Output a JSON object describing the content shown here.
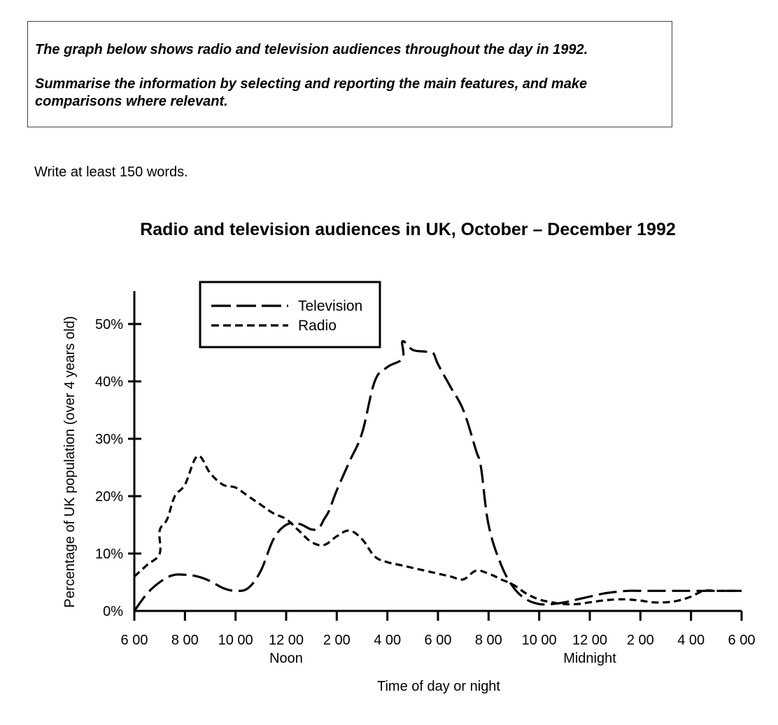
{
  "task": {
    "line1": "The graph below shows radio and television audiences throughout the day in 1992.",
    "line2": "Summarise the information by selecting and reporting the main features, and make",
    "line3": "comparisons where relevant."
  },
  "instruction": "Write at least 150 words.",
  "chart_data": {
    "type": "line",
    "title": "Radio and television audiences in UK, October – December 1992",
    "xlabel": "Time of day or night",
    "ylabel": "Percentage of UK population (over 4 years old)",
    "x_tick_labels": [
      "6 00",
      "8 00",
      "10 00",
      "12 00",
      "2 00",
      "4 00",
      "6 00",
      "8 00",
      "10 00",
      "12 00",
      "2 00",
      "4 00",
      "6 00"
    ],
    "x_sublabels": {
      "12 00 (noon)": "Noon",
      "12 00 (midnight)": "Midnight"
    },
    "x_sublabel_noon": "Noon",
    "x_sublabel_midnight": "Midnight",
    "y_ticks": [
      0,
      10,
      20,
      30,
      40,
      50
    ],
    "y_tick_labels": [
      "0%",
      "10%",
      "20%",
      "30%",
      "40%",
      "50%"
    ],
    "xlim": [
      0,
      24
    ],
    "ylim": [
      0,
      55
    ],
    "legend_position": "top-left",
    "series": [
      {
        "name": "Television",
        "style": "long-dash",
        "x": [
          0,
          0.5,
          1,
          1.5,
          2,
          2.5,
          3,
          3.5,
          4,
          4.5,
          5,
          5.5,
          6,
          6.5,
          7,
          7.3,
          7.5,
          7.7,
          8,
          8.5,
          9,
          9.5,
          10,
          10.6,
          10.6,
          11,
          11.5,
          11.8,
          12,
          12.5,
          13,
          13.5,
          13.7,
          14,
          14.5,
          15,
          15.5,
          16,
          16.5,
          17,
          17.5,
          18,
          18.5,
          18.8,
          19,
          19.5,
          20,
          20.5,
          21,
          21.5,
          22,
          22.5,
          23,
          23.5,
          24
        ],
        "y": [
          0,
          3,
          5,
          6.2,
          6.3,
          6,
          5.2,
          4,
          3.5,
          4,
          7,
          12.5,
          15,
          15.2,
          14.2,
          14.5,
          16,
          17.5,
          21,
          26,
          31,
          40,
          42.5,
          44,
          47,
          45.5,
          45.2,
          45,
          43,
          39,
          35,
          28,
          25,
          15,
          8,
          4,
          2,
          1.2,
          1.2,
          1.5,
          2,
          2.5,
          3,
          3.2,
          3.3,
          3.5,
          3.5,
          3.5,
          3.5,
          3.5,
          3.5,
          3.5,
          3.5,
          3.5,
          3.5
        ]
      },
      {
        "name": "Radio",
        "style": "short-dash",
        "x": [
          0,
          0.5,
          1,
          1,
          1.3,
          1.6,
          2,
          2.5,
          3,
          3.5,
          4,
          4.5,
          5,
          5.5,
          6,
          6.5,
          7,
          7.5,
          8,
          8.5,
          9,
          9.5,
          10,
          10.5,
          11,
          11.5,
          12,
          12.5,
          13,
          13.5,
          14,
          14.5,
          15,
          15.5,
          16,
          16.5,
          17,
          17.5,
          18,
          18.5,
          19,
          19.5,
          20,
          20.5,
          21,
          21.5,
          22,
          22.5,
          23,
          23.5,
          24
        ],
        "y": [
          6,
          8,
          10,
          14,
          16,
          20,
          22,
          27,
          24,
          22,
          21.5,
          20,
          18.5,
          17,
          16,
          14,
          12,
          11.5,
          13,
          14,
          12.5,
          9.5,
          8.5,
          8,
          7.5,
          7,
          6.5,
          6,
          5.5,
          7,
          6.5,
          5.5,
          4.5,
          3,
          2,
          1.5,
          1.2,
          1.2,
          1.5,
          1.8,
          2,
          2,
          1.8,
          1.5,
          1.5,
          1.8,
          2.5,
          3.5,
          3.5,
          3.5,
          3.5
        ]
      }
    ]
  }
}
